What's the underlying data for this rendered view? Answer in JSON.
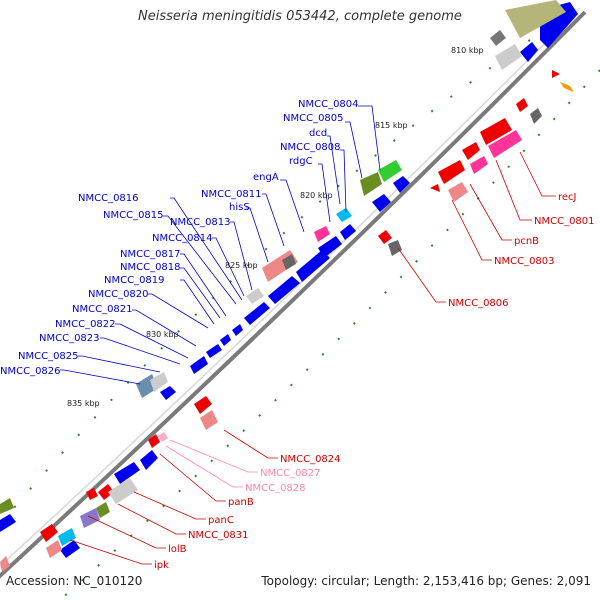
{
  "title": "Neisseria meningitidis 053442, complete genome",
  "footer": {
    "accession": "Accession: NC_010120",
    "summary": "Topology: circular; Length: 2,153,416 bp; Genes: 2,091"
  },
  "scale_labels": [
    "810 kbp",
    "815 kbp",
    "820 kbp",
    "825 kbp",
    "830 kbp",
    "835 kbp"
  ],
  "gene_labels_left": [
    "NMCC_0804",
    "NMCC_0805",
    "dcd",
    "NMCC_0808",
    "rdgC",
    "engA",
    "NMCC_0811",
    "hisS",
    "NMCC_0816",
    "NMCC_0815",
    "NMCC_0813",
    "NMCC_0814",
    "NMCC_0817",
    "NMCC_0818",
    "NMCC_0819",
    "NMCC_0820",
    "NMCC_0821",
    "NMCC_0822",
    "NMCC_0823",
    "NMCC_0825",
    "NMCC_0826"
  ],
  "gene_labels_right": [
    "recJ",
    "NMCC_0801",
    "pcnB",
    "NMCC_0803",
    "NMCC_0806",
    "NMCC_0824",
    "NMCC_0827",
    "NMCC_0828",
    "panB",
    "panC",
    "NMCC_0831",
    "lolB",
    "ipk"
  ],
  "colors": {
    "forward_gene": "#0000ee",
    "reverse_gene": "#ee0000",
    "pink_gene": "#ff99bb",
    "backbone": "#808080"
  }
}
